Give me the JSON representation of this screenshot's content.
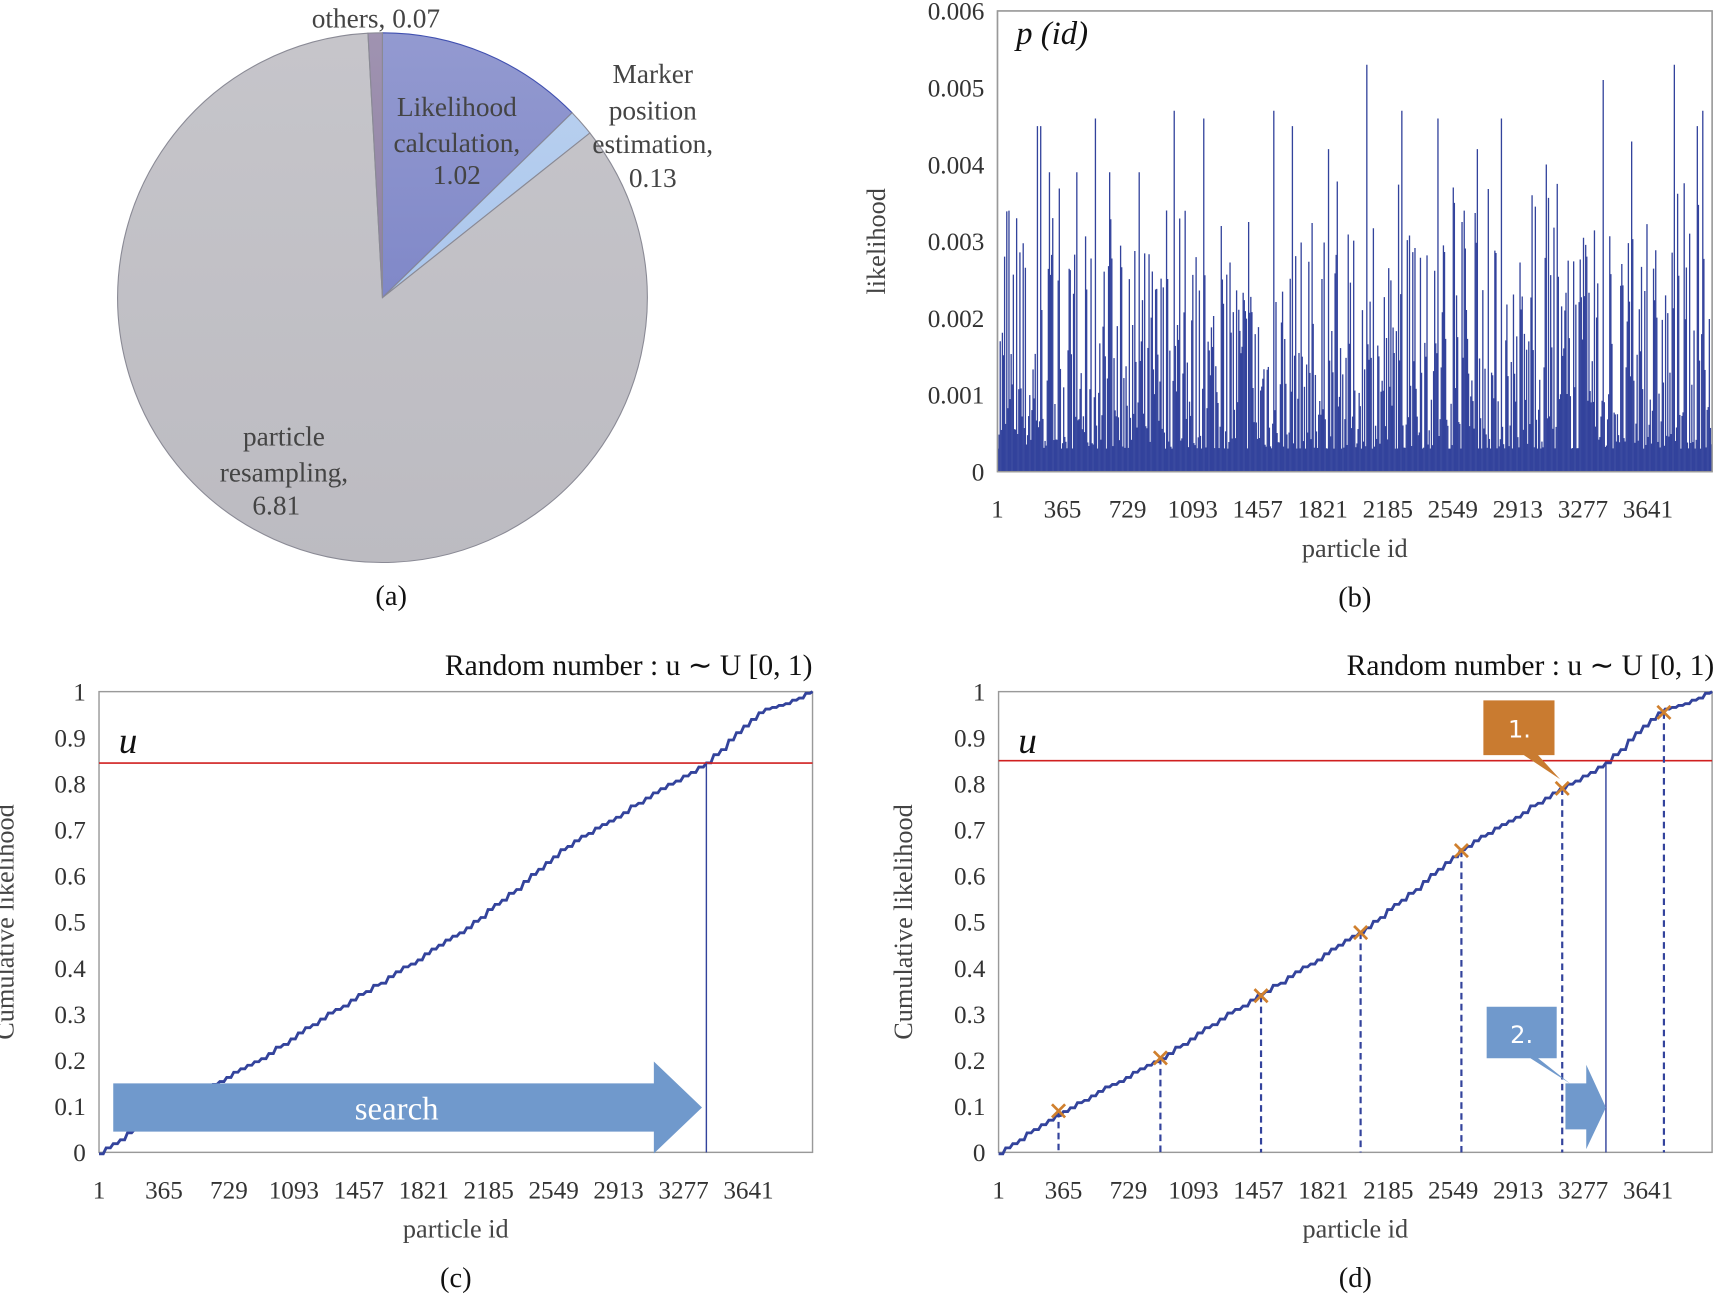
{
  "chart_data": [
    {
      "panel": "a",
      "type": "pie",
      "caption": "(a)",
      "slices": [
        {
          "label": "Likelihood calculation,",
          "value": 1.02,
          "value_label": "1.02",
          "color": "#8088c8"
        },
        {
          "label": "Marker position estimation,",
          "value": 0.13,
          "value_label": "0.13",
          "color": "#aac6ec"
        },
        {
          "label": "particle resampling,",
          "value": 6.81,
          "value_label": "6.81",
          "color": "#bcbbc1"
        },
        {
          "label": "others,",
          "value": 0.07,
          "value_label": "0.07",
          "color": "#8f80a3"
        }
      ]
    },
    {
      "panel": "b",
      "type": "bar",
      "caption": "(b)",
      "annotation": "p (id)",
      "xlabel": "particle id",
      "ylabel": "likelihood",
      "xlim": [
        1,
        4000
      ],
      "ylim": [
        0,
        0.006
      ],
      "xticks": [
        "1",
        "365",
        "729",
        "1093",
        "1457",
        "1821",
        "2185",
        "2549",
        "2913",
        "3277",
        "3641"
      ],
      "yticks": [
        "0",
        "0.001",
        "0.002",
        "0.003",
        "0.004",
        "0.005",
        "0.006"
      ],
      "color": "#33439c",
      "peaks": [
        [
          37,
          0.0028
        ],
        [
          61,
          0.0034
        ],
        [
          104,
          0.0033
        ],
        [
          220,
          0.0045
        ],
        [
          239,
          0.0045
        ],
        [
          288,
          0.0039
        ],
        [
          441,
          0.0039
        ],
        [
          545,
          0.0046
        ],
        [
          625,
          0.0039
        ],
        [
          790,
          0.0039
        ],
        [
          986,
          0.0047
        ],
        [
          1151,
          0.0046
        ],
        [
          1250,
          0.0032
        ],
        [
          1544,
          0.0047
        ],
        [
          1648,
          0.0045
        ],
        [
          1850,
          0.0042
        ],
        [
          2064,
          0.0053
        ],
        [
          2260,
          0.0047
        ],
        [
          2462,
          0.0046
        ],
        [
          2548,
          0.0037
        ],
        [
          2683,
          0.0042
        ],
        [
          2818,
          0.0046
        ],
        [
          2989,
          0.0036
        ],
        [
          3069,
          0.004
        ],
        [
          3387,
          0.0051
        ],
        [
          3546,
          0.0043
        ],
        [
          3785,
          0.0053
        ],
        [
          3914,
          0.0045
        ],
        [
          3944,
          0.0047
        ]
      ]
    },
    {
      "panel": "c",
      "type": "line",
      "caption": "(c)",
      "title": "Random number : u ∼ U [0, 1)",
      "u_label": "u",
      "xlabel": "particle id",
      "ylabel": "Cumulative  likelihood",
      "xlim": [
        1,
        4000
      ],
      "ylim": [
        0,
        1
      ],
      "xticks": [
        "1",
        "365",
        "729",
        "1093",
        "1457",
        "1821",
        "2185",
        "2549",
        "2913",
        "3277",
        "3641"
      ],
      "yticks": [
        "0",
        "0.1",
        "0.2",
        "0.3",
        "0.4",
        "0.5",
        "0.6",
        "0.7",
        "0.8",
        "0.9",
        "1"
      ],
      "curve": [
        [
          1,
          0
        ],
        [
          200,
          0.05
        ],
        [
          365,
          0.09
        ],
        [
          600,
          0.14
        ],
        [
          912,
          0.205
        ],
        [
          1200,
          0.28
        ],
        [
          1457,
          0.34
        ],
        [
          1750,
          0.41
        ],
        [
          2023,
          0.477
        ],
        [
          2300,
          0.56
        ],
        [
          2590,
          0.655
        ],
        [
          2900,
          0.73
        ],
        [
          3150,
          0.79
        ],
        [
          3405,
          0.845
        ],
        [
          3700,
          0.955
        ],
        [
          3850,
          0.975
        ],
        [
          4000,
          1
        ]
      ],
      "u": 0.845,
      "selected_id": 3405,
      "arrow_label": "search",
      "line_color": "#33439c",
      "u_color": "#d02020",
      "arrow_color": "#7099cc"
    },
    {
      "panel": "d",
      "type": "line",
      "caption": "(d)",
      "title": "Random number : u ∼ U [0, 1)",
      "u_label": "u",
      "xlabel": "particle id",
      "ylabel": "Cumulative  likelihood",
      "xlim": [
        1,
        4000
      ],
      "ylim": [
        0,
        1
      ],
      "xticks": [
        "1",
        "365",
        "729",
        "1093",
        "1457",
        "1821",
        "2185",
        "2549",
        "2913",
        "3277",
        "3641"
      ],
      "yticks": [
        "0",
        "0.1",
        "0.2",
        "0.3",
        "0.4",
        "0.5",
        "0.6",
        "0.7",
        "0.8",
        "0.9",
        "1"
      ],
      "u": 0.85,
      "selected_id": 3405,
      "markers": [
        [
          337,
          0.09
        ],
        [
          908,
          0.205
        ],
        [
          1472,
          0.34
        ],
        [
          2030,
          0.477
        ],
        [
          2595,
          0.655
        ],
        [
          3160,
          0.79
        ],
        [
          3730,
          0.955
        ]
      ],
      "callout1": "1.",
      "callout2": "2.",
      "marker_color": "#d0802e",
      "callout1_color": "#c97b30",
      "callout2_color": "#7099cc"
    }
  ]
}
